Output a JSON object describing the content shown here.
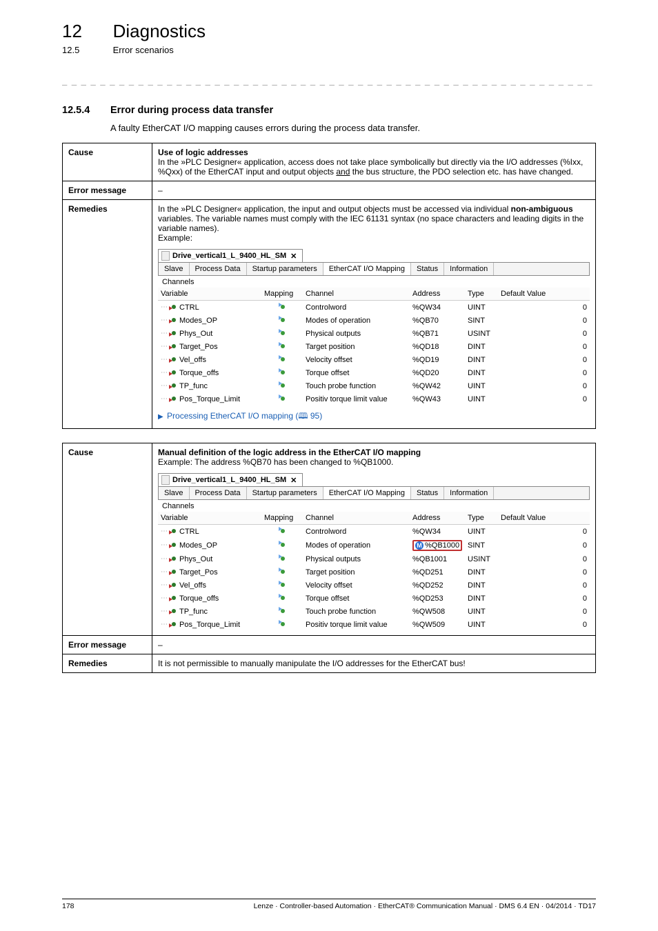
{
  "header": {
    "chapter_num": "12",
    "chapter_title": "Diagnostics",
    "sub_num": "12.5",
    "sub_title": "Error scenarios"
  },
  "section": {
    "num": "12.5.4",
    "title": "Error during process data transfer",
    "intro": "A faulty EtherCAT I/O mapping causes errors during the process data transfer."
  },
  "labels": {
    "cause": "Cause",
    "error_message": "Error message",
    "remedies": "Remedies",
    "dash": "–"
  },
  "box1": {
    "cause_title": "Use of logic addresses",
    "cause_text_1": "In the »PLC Designer« application, access does not take place symbolically but directly via the I/O addresses (%Ixx, %Qxx) of the EtherCAT input and output objects ",
    "cause_text_and": "and",
    "cause_text_2": " the bus structure, the PDO selection etc. has have changed.",
    "remedies_1": "In the »PLC Designer« application, the input and output objects must be accessed via individual ",
    "remedies_bold": "non-ambiguous",
    "remedies_2": " variables. The variable names must comply with the IEC 61131 syntax (no space characters and leading digits in the variable names).",
    "remedies_ex": "Example:",
    "link_text": "Processing EtherCAT I/O mapping",
    "link_page": "95",
    "ide": {
      "title": "Drive_vertical1_L_9400_HL_SM",
      "tabs": [
        "Slave",
        "Process Data",
        "Startup parameters",
        "EtherCAT I/O Mapping",
        "Status",
        "Information"
      ],
      "active_tab": 3,
      "channels_label": "Channels",
      "columns": [
        "Variable",
        "Mapping",
        "Channel",
        "Address",
        "Type",
        "Default Value"
      ],
      "rows": [
        {
          "v": "CTRL",
          "ch": "Controlword",
          "a": "%QW34",
          "t": "UINT",
          "d": "0"
        },
        {
          "v": "Modes_OP",
          "ch": "Modes of operation",
          "a": "%QB70",
          "t": "SINT",
          "d": "0"
        },
        {
          "v": "Phys_Out",
          "ch": "Physical outputs",
          "a": "%QB71",
          "t": "USINT",
          "d": "0"
        },
        {
          "v": "Target_Pos",
          "ch": "Target position",
          "a": "%QD18",
          "t": "DINT",
          "d": "0"
        },
        {
          "v": "Vel_offs",
          "ch": "Velocity offset",
          "a": "%QD19",
          "t": "DINT",
          "d": "0"
        },
        {
          "v": "Torque_offs",
          "ch": "Torque offset",
          "a": "%QD20",
          "t": "DINT",
          "d": "0"
        },
        {
          "v": "TP_func",
          "ch": "Touch probe function",
          "a": "%QW42",
          "t": "UINT",
          "d": "0"
        },
        {
          "v": "Pos_Torque_Limit",
          "ch": "Positiv torque limit value",
          "a": "%QW43",
          "t": "UINT",
          "d": "0"
        }
      ]
    }
  },
  "box2": {
    "cause_title": "Manual definition of the logic address in the EtherCAT I/O mapping",
    "cause_ex": "Example: The address %QB70 has been changed to %QB1000.",
    "remedies": "It is not permissible to manually manipulate the I/O addresses for the EtherCAT bus!",
    "ide": {
      "title": "Drive_vertical1_L_9400_HL_SM",
      "tabs": [
        "Slave",
        "Process Data",
        "Startup parameters",
        "EtherCAT I/O Mapping",
        "Status",
        "Information"
      ],
      "active_tab": 3,
      "channels_label": "Channels",
      "columns": [
        "Variable",
        "Mapping",
        "Channel",
        "Address",
        "Type",
        "Default Value"
      ],
      "rows": [
        {
          "v": "CTRL",
          "ch": "Controlword",
          "a": "%QW34",
          "t": "UINT",
          "d": "0",
          "hl": false
        },
        {
          "v": "Modes_OP",
          "ch": "Modes of operation",
          "a": "%QB1000",
          "t": "SINT",
          "d": "0",
          "hl": true
        },
        {
          "v": "Phys_Out",
          "ch": "Physical outputs",
          "a": "%QB1001",
          "t": "USINT",
          "d": "0",
          "hl": false
        },
        {
          "v": "Target_Pos",
          "ch": "Target position",
          "a": "%QD251",
          "t": "DINT",
          "d": "0",
          "hl": false
        },
        {
          "v": "Vel_offs",
          "ch": "Velocity offset",
          "a": "%QD252",
          "t": "DINT",
          "d": "0",
          "hl": false
        },
        {
          "v": "Torque_offs",
          "ch": "Torque offset",
          "a": "%QD253",
          "t": "DINT",
          "d": "0",
          "hl": false
        },
        {
          "v": "TP_func",
          "ch": "Touch probe function",
          "a": "%QW508",
          "t": "UINT",
          "d": "0",
          "hl": false
        },
        {
          "v": "Pos_Torque_Limit",
          "ch": "Positiv torque limit value",
          "a": "%QW509",
          "t": "UINT",
          "d": "0",
          "hl": false
        }
      ]
    }
  },
  "footer": {
    "page": "178",
    "text": "Lenze · Controller-based Automation · EtherCAT® Communication Manual · DMS 6.4 EN · 04/2014 · TD17"
  }
}
